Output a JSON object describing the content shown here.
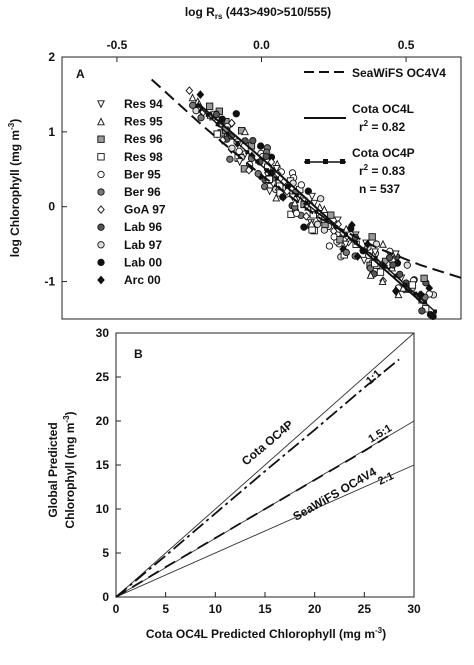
{
  "chart_data": [
    {
      "type": "scatter",
      "panel_label": "A",
      "top_axis_label": "log R",
      "top_axis_label_sub": "rs",
      "top_axis_label_tail": " (443>490>510/555)",
      "top_xlim": [
        -0.69,
        0.69
      ],
      "top_ticks": [
        -0.5,
        0.0,
        0.5
      ],
      "top_tick_labels": [
        "-0.5",
        "0.0",
        "0.5"
      ],
      "ylabel": "log Chlorophyll (mg m",
      "ylabel_sup": "-3",
      "ylabel_tail": ")",
      "ylim": [
        -1.5,
        2.0
      ],
      "y_ticks": [
        -1,
        0,
        1,
        2
      ],
      "y_tick_labels": [
        "-1",
        "0",
        "1",
        "2"
      ],
      "series_legend": [
        {
          "name": "Res 94",
          "marker": "tri-down"
        },
        {
          "name": "Res 95",
          "marker": "tri-up"
        },
        {
          "name": "Res 96",
          "marker": "square-hatch"
        },
        {
          "name": "Res 98",
          "marker": "square"
        },
        {
          "name": "Ber 95",
          "marker": "circle"
        },
        {
          "name": "Ber 96",
          "marker": "circle-cross"
        },
        {
          "name": "GoA 97",
          "marker": "diamond"
        },
        {
          "name": "Lab 96",
          "marker": "circle-x"
        },
        {
          "name": "Lab 97",
          "marker": "circle-light"
        },
        {
          "name": "Lab 00",
          "marker": "circle-filled"
        },
        {
          "name": "Arc 00",
          "marker": "diamond-filled"
        }
      ],
      "line_legend": [
        {
          "name": "SeaWiFS OC4V4",
          "style": "long-dash"
        },
        {
          "name": "Cota OC4L",
          "style": "solid",
          "stat": "r",
          "stat_sup": "2",
          "stat_tail": " = 0.82"
        },
        {
          "name": "Cota OC4P",
          "style": "solid-squares",
          "stat": "r",
          "stat_sup": "2",
          "stat_tail": " = 0.83",
          "n_text": "n = 537"
        }
      ],
      "lines": {
        "oc4v4": {
          "x": [
            -0.38,
            -0.2,
            0.0,
            0.2,
            0.4,
            0.55,
            0.69
          ],
          "y": [
            1.7,
            1.07,
            0.42,
            -0.15,
            -0.55,
            -0.78,
            -0.95
          ]
        },
        "oc4l": {
          "x": [
            -0.22,
            0.0,
            0.2,
            0.4,
            0.56
          ],
          "y": [
            1.38,
            0.65,
            -0.05,
            -0.75,
            -1.3
          ]
        },
        "oc4p": {
          "x": [
            -0.22,
            0.0,
            0.2,
            0.4,
            0.6
          ],
          "y": [
            1.35,
            0.55,
            -0.1,
            -0.7,
            -1.4
          ]
        }
      },
      "scatter_clusters": {
        "x": [
          -0.22,
          -0.18,
          -0.15,
          -0.12,
          -0.1,
          -0.08,
          -0.05,
          -0.03,
          0.0,
          0.02,
          0.04,
          0.06,
          0.08,
          0.1,
          0.12,
          0.15,
          0.17,
          0.2,
          0.22,
          0.25,
          0.28,
          0.3,
          0.32,
          0.35,
          0.38,
          0.4,
          0.42,
          0.45,
          0.48,
          0.5,
          0.52,
          0.55,
          0.58
        ],
        "y": [
          1.38,
          1.3,
          1.15,
          1.05,
          0.95,
          0.85,
          0.75,
          0.7,
          0.6,
          0.5,
          0.42,
          0.35,
          0.25,
          0.18,
          0.1,
          0.0,
          -0.05,
          -0.15,
          -0.2,
          -0.3,
          -0.38,
          -0.45,
          -0.5,
          -0.58,
          -0.65,
          -0.72,
          -0.8,
          -0.85,
          -0.92,
          -1.0,
          -1.05,
          -1.15,
          -1.3
        ]
      }
    },
    {
      "type": "line",
      "panel_label": "B",
      "xlabel": "Cota OC4L Predicted Chlorophyll (mg m",
      "xlabel_sup": "-3",
      "xlabel_tail": ")",
      "ylabel_line1": "Global Predicted",
      "ylabel_line2": "Chlorophyll (mg m",
      "ylabel_sup": "-3",
      "ylabel_tail": ")",
      "xlim": [
        0,
        30
      ],
      "ylim": [
        0,
        30
      ],
      "x_ticks": [
        0,
        5,
        10,
        15,
        20,
        25,
        30
      ],
      "x_tick_labels": [
        "0",
        "5",
        "10",
        "15",
        "20",
        "25",
        "30"
      ],
      "y_ticks": [
        0,
        5,
        10,
        15,
        20,
        25,
        30
      ],
      "y_tick_labels": [
        "0",
        "5",
        "10",
        "15",
        "20",
        "25",
        "30"
      ],
      "ref_lines": [
        {
          "label": "1:1",
          "slope": 1.0
        },
        {
          "label": "1.5:1",
          "slope": 0.6667
        },
        {
          "label": "2:1",
          "slope": 0.5
        }
      ],
      "series": [
        {
          "name": "Cota OC4P",
          "style": "dash-dot",
          "x": [
            0,
            5,
            10,
            15,
            20,
            25,
            28.5
          ],
          "y": [
            0,
            4.7,
            9.5,
            14.3,
            19.0,
            23.8,
            27.0
          ]
        },
        {
          "name": "SeaWiFS OC4V4",
          "style": "long-dash",
          "x": [
            0,
            5,
            10,
            15,
            20,
            25,
            28
          ],
          "y": [
            0,
            3.4,
            6.7,
            10.0,
            13.3,
            16.6,
            18.7
          ]
        }
      ]
    }
  ]
}
